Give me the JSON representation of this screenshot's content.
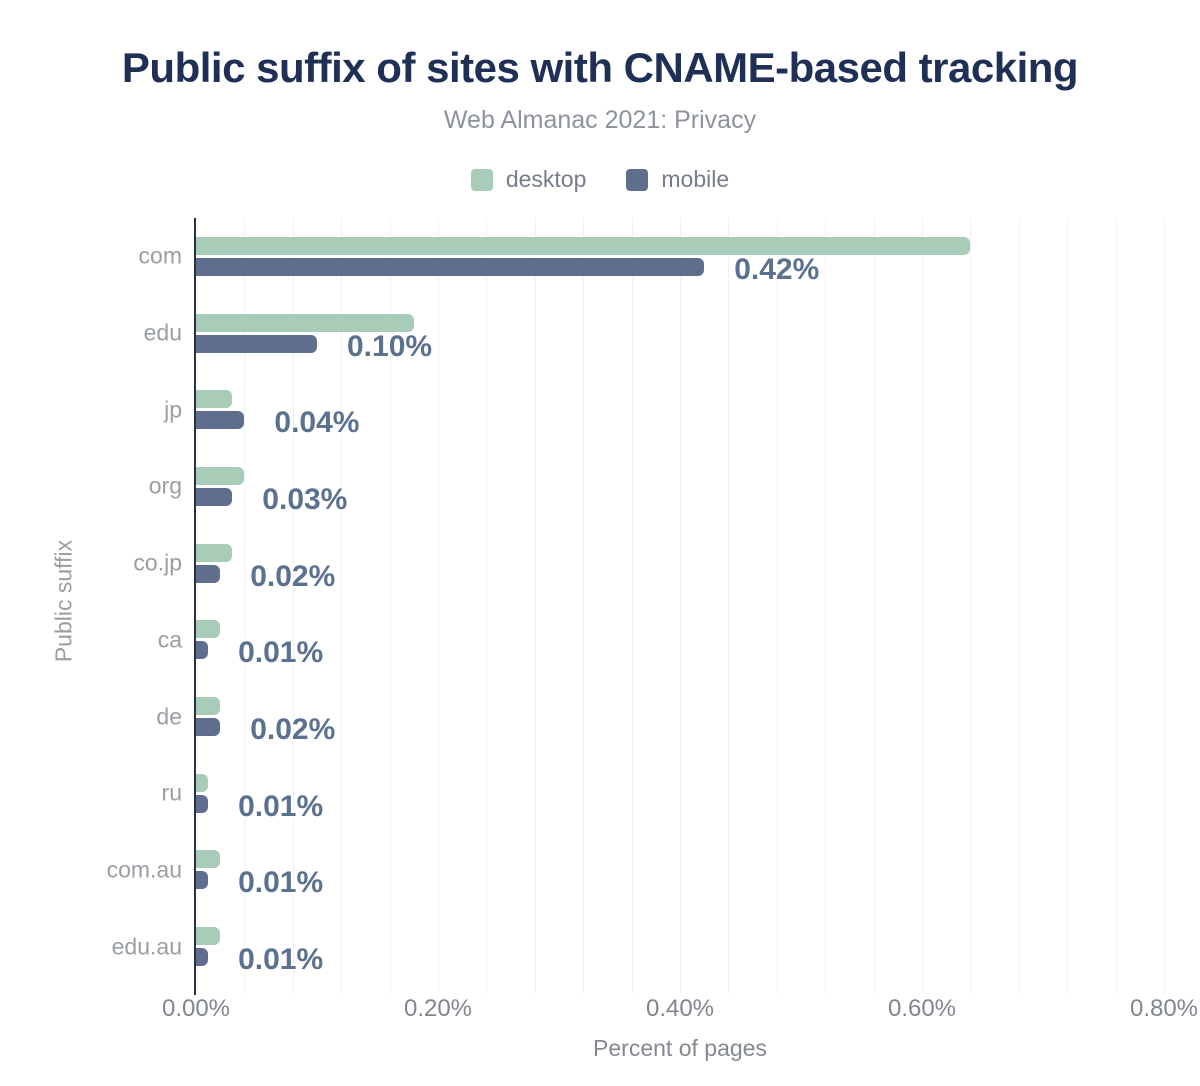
{
  "title": "Public suffix of sites with CNAME-based tracking",
  "subtitle": "Web Almanac 2021: Privacy",
  "axes": {
    "x_title": "Percent of pages",
    "y_title": "Public suffix",
    "x_ticks": [
      "0.00%",
      "0.20%",
      "0.40%",
      "0.60%",
      "0.80%"
    ]
  },
  "legend": [
    {
      "label": "desktop",
      "color": "#a8ccb8"
    },
    {
      "label": "mobile",
      "color": "#5f6e8c"
    }
  ],
  "colors": {
    "desktop": "#a8ccb8",
    "mobile": "#5f6e8c",
    "title_text": "#1f2f55",
    "subtitle_text": "#8d939c",
    "category_text": "#999ea3",
    "tick_text": "#81868e",
    "data_label_text": "#5b7190",
    "gridline": "#f0f1f4",
    "axis_line": "#2a3342",
    "background": "#ffffff"
  },
  "chart_data": {
    "type": "bar",
    "orientation": "horizontal",
    "title": "Public suffix of sites with CNAME-based tracking",
    "subtitle": "Web Almanac 2021: Privacy",
    "xlabel": "Percent of pages",
    "ylabel": "Public suffix",
    "xlim": [
      0,
      0.8
    ],
    "x_tick_interval": 0.2,
    "minor_gridline_interval": 0.04,
    "grid": true,
    "legend_position": "top",
    "categories": [
      "com",
      "edu",
      "jp",
      "org",
      "co.jp",
      "ca",
      "de",
      "ru",
      "com.au",
      "edu.au"
    ],
    "series": [
      {
        "name": "desktop",
        "values": [
          0.64,
          0.18,
          0.03,
          0.04,
          0.03,
          0.02,
          0.02,
          0.01,
          0.02,
          0.02
        ]
      },
      {
        "name": "mobile",
        "values": [
          0.42,
          0.1,
          0.04,
          0.03,
          0.02,
          0.01,
          0.02,
          0.01,
          0.01,
          0.01
        ]
      }
    ],
    "data_labels": [
      "0.42%",
      "0.10%",
      "0.04%",
      "0.03%",
      "0.02%",
      "0.01%",
      "0.02%",
      "0.01%",
      "0.01%",
      "0.01%"
    ],
    "data_labels_series": "mobile"
  }
}
